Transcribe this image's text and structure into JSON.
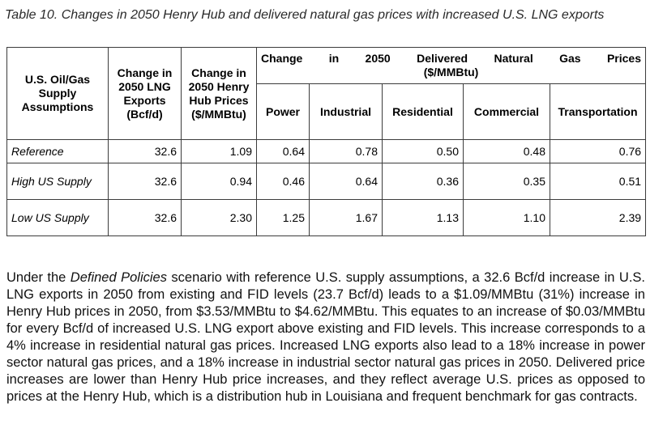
{
  "caption": "Table 10. Changes in 2050 Henry Hub and delivered natural gas prices with increased U.S. LNG exports",
  "table": {
    "headers": {
      "assumptions": "U.S. Oil/Gas Supply Assumptions",
      "lng_exports": "Change in 2050 LNG Exports (Bcf/d)",
      "henry_hub": "Change in 2050 Henry Hub Prices ($/MMBtu)",
      "delivered_words": [
        "Change",
        "in",
        "2050",
        "Delivered",
        "Natural",
        "Gas",
        "Prices"
      ],
      "delivered_units": "($/MMBtu)",
      "sectors": [
        "Power",
        "Industrial",
        "Residential",
        "Commercial",
        "Transportation"
      ]
    },
    "rows": [
      {
        "label": "Reference",
        "lng": "32.6",
        "hh": "1.09",
        "power": "0.64",
        "industrial": "0.78",
        "residential": "0.50",
        "commercial": "0.48",
        "transportation": "0.76"
      },
      {
        "label": "High US Supply",
        "lng": "32.6",
        "hh": "0.94",
        "power": "0.46",
        "industrial": "0.64",
        "residential": "0.36",
        "commercial": "0.35",
        "transportation": "0.51"
      },
      {
        "label": "Low US Supply",
        "lng": "32.6",
        "hh": "2.30",
        "power": "1.25",
        "industrial": "1.67",
        "residential": "1.13",
        "commercial": "1.10",
        "transportation": "2.39"
      }
    ]
  },
  "paragraph": {
    "pre": "Under the ",
    "emphasis": "Defined Policies",
    "post": " scenario with reference U.S. supply assumptions, a 32.6 Bcf/d increase in U.S. LNG exports in 2050 from existing and FID levels (23.7 Bcf/d) leads to a $1.09/MMBtu (31%) increase in Henry Hub prices in 2050, from $3.53/MMBtu to $4.62/MMBtu. This equates to an increase of $0.03/MMBtu for every Bcf/d of increased U.S. LNG export above existing and FID levels. This increase corresponds to a 4% increase in residential natural gas prices. Increased LNG exports also lead to a 18% increase in power sector natural gas prices, and a 18% increase in industrial sector natural gas prices in 2050. Delivered price increases are lower than Henry Hub price increases, and they reflect average U.S. prices as opposed to prices at the Henry Hub, which is a distribution hub in Louisiana and frequent benchmark for gas contracts."
  }
}
